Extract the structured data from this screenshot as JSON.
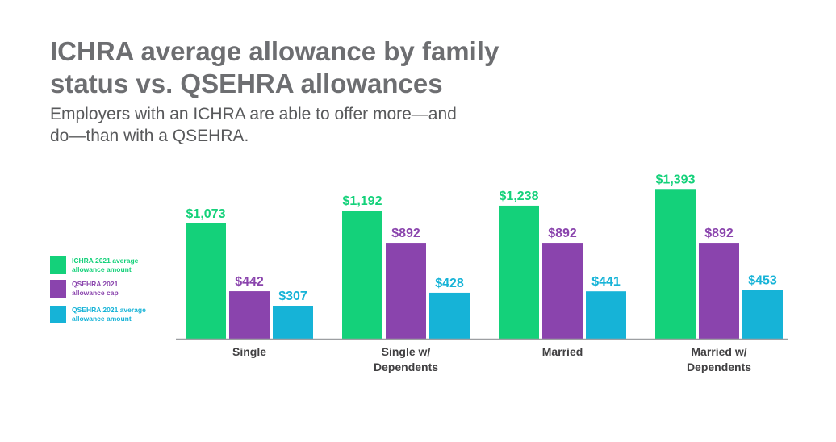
{
  "title": "ICHRA average allowance by family status vs. QSEHRA allowances",
  "subtitle": "Employers with an ICHRA are able to offer more—and do—than with a QSEHRA.",
  "chart_data": {
    "type": "bar",
    "categories": [
      [
        "Single"
      ],
      [
        "Single w/",
        "Dependents"
      ],
      [
        "Married"
      ],
      [
        "Married w/",
        "Dependents"
      ]
    ],
    "series": [
      {
        "name": "ICHRA 2021 average allowance amount",
        "color": "#14d17a",
        "values": [
          1073,
          1192,
          1238,
          1393
        ],
        "labels": [
          "$1,073",
          "$1,192",
          "$1,238",
          "$1,393"
        ]
      },
      {
        "name": "QSEHRA 2021 allowance cap",
        "color": "#8a44ad",
        "values": [
          442,
          892,
          892,
          892
        ],
        "labels": [
          "$442",
          "$892",
          "$892",
          "$892"
        ]
      },
      {
        "name": "QSEHRA 2021 average allowance amount",
        "color": "#16b3d7",
        "values": [
          307,
          428,
          441,
          453
        ],
        "labels": [
          "$307",
          "$428",
          "$441",
          "$453"
        ]
      }
    ],
    "ylim": [
      0,
      1500
    ],
    "grid": false,
    "legend_position": "left",
    "baseline_color": "#9d9fa2"
  }
}
